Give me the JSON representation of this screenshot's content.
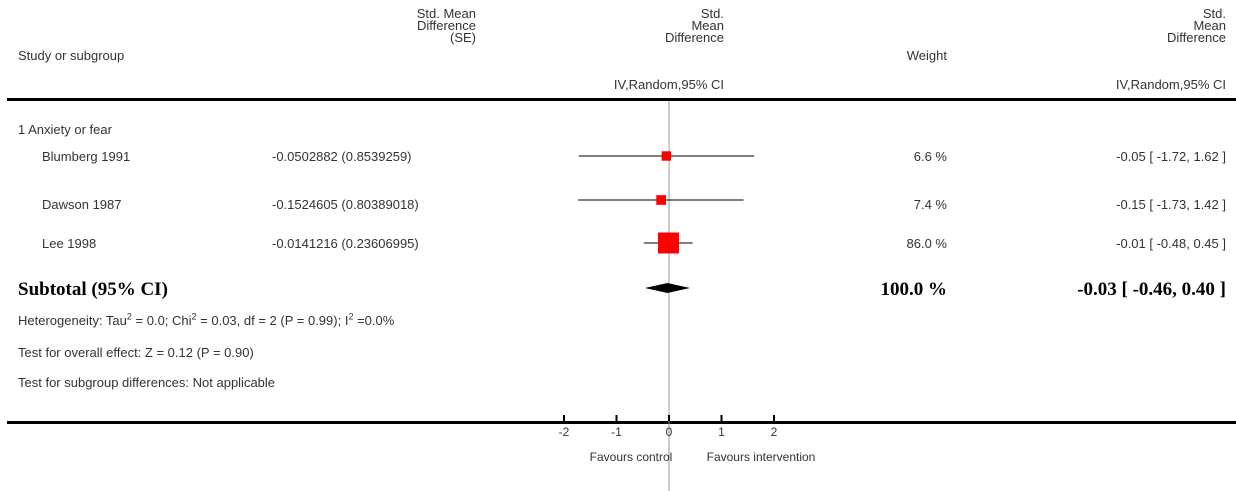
{
  "header": {
    "study_label": "Study or subgroup",
    "smd_se_label": [
      "Std. Mean",
      "Difference",
      "(SE)"
    ],
    "plot_label": [
      "Std.",
      "Mean",
      "Difference"
    ],
    "weight_label": "Weight",
    "ci_label": [
      "Std.",
      "Mean",
      "Difference"
    ],
    "plot_method": "IV,Random,95% CI",
    "ci_method": "IV,Random,95% CI"
  },
  "group": {
    "title": "1 Anxiety or fear",
    "subtotal": {
      "label": "Subtotal (95% CI)",
      "weight": "100.0 %",
      "ci_text": "-0.03 [ -0.46, 0.40 ]"
    },
    "heterogeneity": "Heterogeneity: Tau² = 0.0; Chi² = 0.03, df = 2 (P = 0.99); I² =0.0%",
    "overall_effect": "Test for overall effect: Z = 0.12 (P = 0.90)",
    "subgroup_diff": "Test for subgroup differences: Not applicable"
  },
  "studies": [
    {
      "name": "Blumberg 1991",
      "smd_se": "-0.0502882 (0.8539259)",
      "weight": "6.6 %",
      "ci_text": "-0.05 [ -1.72, 1.62 ]"
    },
    {
      "name": "Dawson 1987",
      "smd_se": "-0.1524605 (0.80389018)",
      "weight": "7.4 %",
      "ci_text": "-0.15 [ -1.73, 1.42 ]"
    },
    {
      "name": "Lee 1998",
      "smd_se": "-0.0141216 (0.23606995)",
      "weight": "86.0 %",
      "ci_text": "-0.01 [ -0.48, 0.45 ]"
    }
  ],
  "axis": {
    "ticks": [
      "-2",
      "-1",
      "0",
      "1",
      "2"
    ],
    "left_label": "Favours control",
    "right_label": "Favours intervention"
  },
  "colors": {
    "marker": "#ff0000",
    "diamond": "#000000",
    "line": "#000000"
  },
  "chart_data": {
    "type": "forest",
    "xlim": [
      -2,
      2
    ],
    "null_line": 0,
    "studies": [
      {
        "name": "Blumberg 1991",
        "estimate": -0.05,
        "lower": -1.72,
        "upper": 1.62,
        "weight": 6.6
      },
      {
        "name": "Dawson 1987",
        "estimate": -0.15,
        "lower": -1.73,
        "upper": 1.42,
        "weight": 7.4
      },
      {
        "name": "Lee 1998",
        "estimate": -0.01,
        "lower": -0.48,
        "upper": 0.45,
        "weight": 86.0
      }
    ],
    "pooled": {
      "estimate": -0.03,
      "lower": -0.46,
      "upper": 0.4
    },
    "x_ticks": [
      -2,
      -1,
      0,
      1,
      2
    ]
  }
}
